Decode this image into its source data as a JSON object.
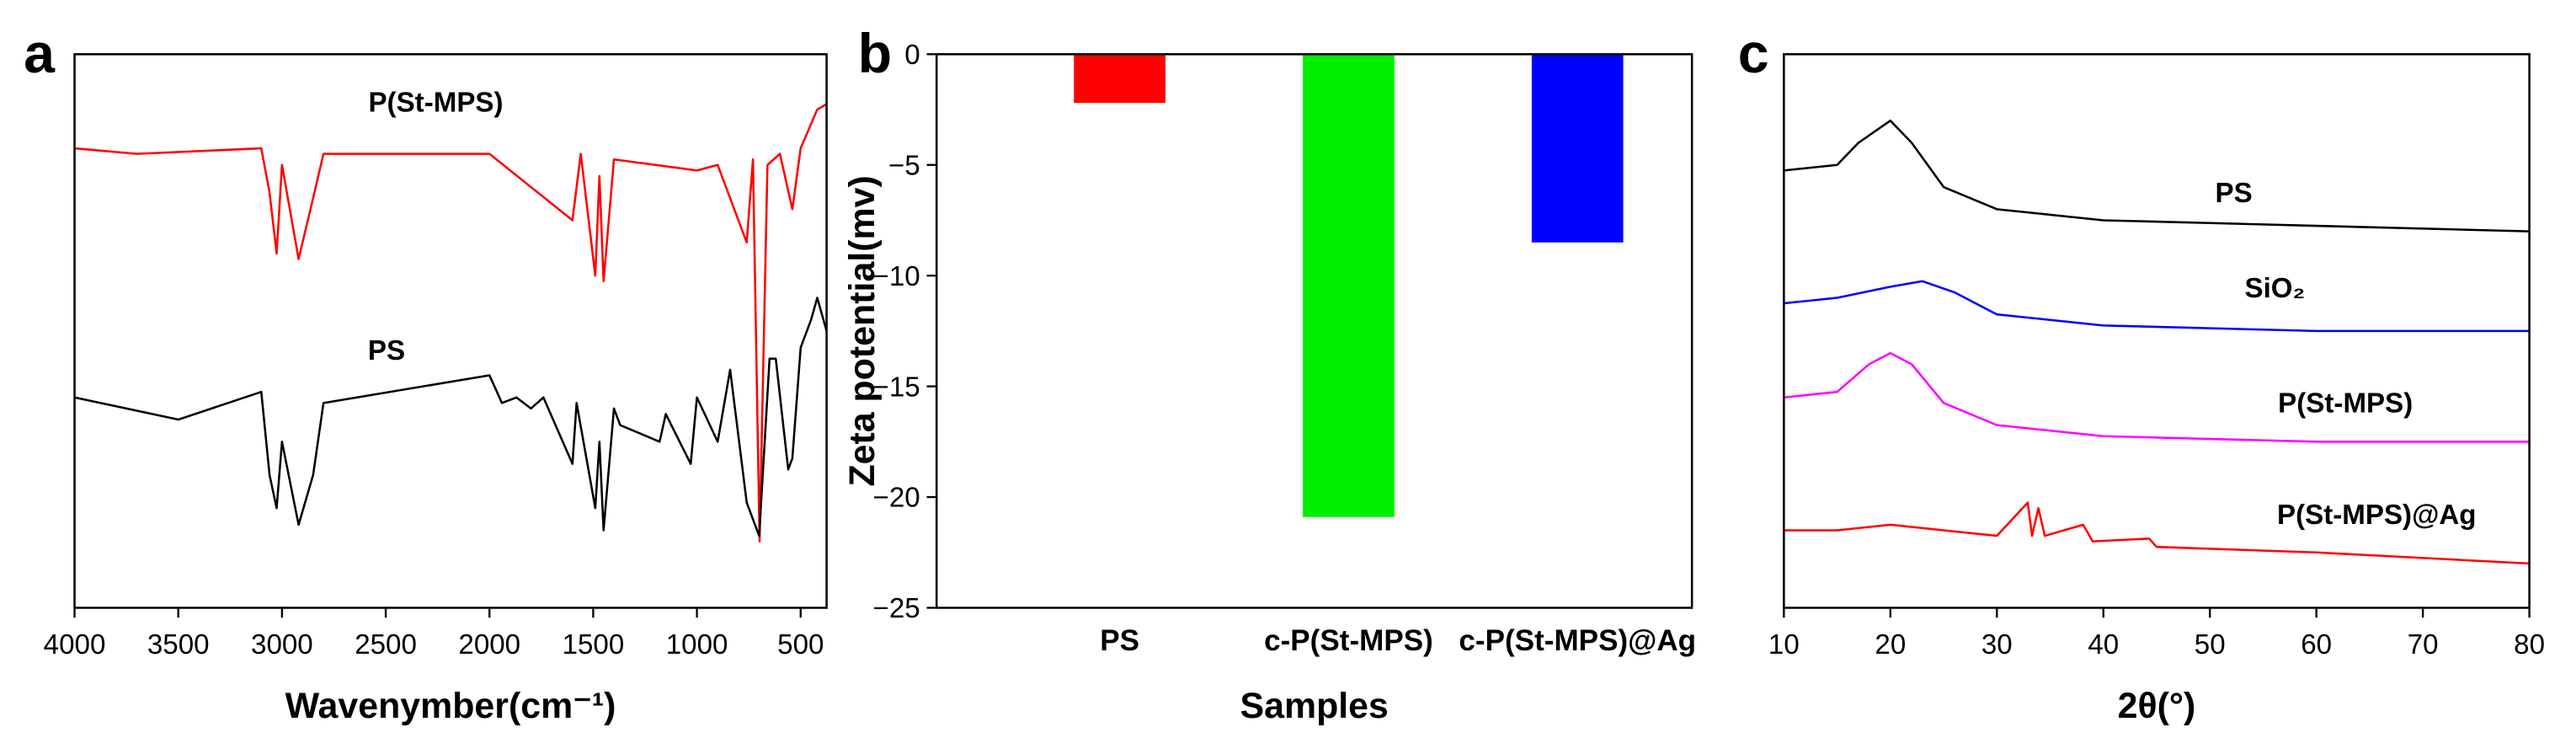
{
  "chart_data": [
    {
      "type": "line",
      "panel_label": "a",
      "xlabel": "Wavenymber(cm⁻¹)",
      "xlim": [
        4000,
        375
      ],
      "xticks": [
        4000,
        3500,
        3000,
        2500,
        2000,
        1500,
        1000,
        500
      ],
      "ylim": [
        0,
        100
      ],
      "series": [
        {
          "name": "P(St-MPS)",
          "color": "#ff0000",
          "x": [
            4000,
            3700,
            3100,
            3060,
            3026,
            3000,
            2920,
            2850,
            2800,
            2000,
            1600,
            1560,
            1490,
            1470,
            1450,
            1400,
            1000,
            900,
            760,
            730,
            698,
            660,
            600,
            540,
            500,
            420,
            375
          ],
          "values": [
            83,
            82,
            83,
            75,
            64,
            80,
            63,
            74,
            82,
            82,
            70,
            82,
            60,
            78,
            59,
            81,
            79,
            80,
            66,
            81,
            12,
            80,
            82,
            72,
            83,
            90,
            91
          ]
        },
        {
          "name": "PS",
          "color": "#000000",
          "x": [
            4000,
            3500,
            3100,
            3060,
            3026,
            3000,
            2920,
            2850,
            2800,
            2000,
            1940,
            1870,
            1800,
            1740,
            1600,
            1580,
            1490,
            1470,
            1450,
            1400,
            1370,
            1180,
            1150,
            1070,
            1030,
            1000,
            900,
            840,
            760,
            700,
            650,
            620,
            560,
            540,
            500,
            450,
            420,
            375
          ],
          "values": [
            38,
            34,
            39,
            24,
            18,
            30,
            15,
            24,
            37,
            42,
            37,
            38,
            36,
            38,
            26,
            37,
            18,
            30,
            14,
            36,
            33,
            30,
            35,
            29,
            26,
            38,
            30,
            43,
            19,
            13,
            45,
            45,
            25,
            27,
            47,
            52,
            56,
            50
          ]
        }
      ]
    },
    {
      "type": "bar",
      "panel_label": "b",
      "xlabel": "Samples",
      "ylabel": "Zeta potential(mv)",
      "categories": [
        "PS",
        "c-P(St-MPS)",
        "c-P(St-MPS)@Ag"
      ],
      "values": [
        -2.2,
        -20.9,
        -8.5
      ],
      "colors": [
        "#ff0000",
        "#00ee00",
        "#0000ff"
      ],
      "ylim": [
        -25,
        0
      ],
      "yticks": [
        0,
        {
          "value": -5,
          "label": "−5"
        },
        {
          "value": -10,
          "label": "−10"
        },
        {
          "value": -15,
          "label": "−15"
        },
        {
          "value": -20,
          "label": "−20"
        },
        {
          "value": -25,
          "label": "−25"
        }
      ]
    },
    {
      "type": "line",
      "panel_label": "c",
      "xlabel": "2θ(°)",
      "xlim": [
        10,
        80
      ],
      "xticks": [
        10,
        20,
        30,
        40,
        50,
        60,
        70,
        80
      ],
      "ylim": [
        0,
        100
      ],
      "series": [
        {
          "name": "PS",
          "color": "#000000",
          "x": [
            10,
            15,
            17,
            20,
            22,
            25,
            30,
            40,
            60,
            80
          ],
          "values": [
            79,
            80,
            84,
            88,
            84,
            76,
            72,
            70,
            69,
            68
          ]
        },
        {
          "name": "SiO₂",
          "color": "#0000ff",
          "x": [
            10,
            15,
            20,
            23,
            26,
            30,
            40,
            60,
            80
          ],
          "values": [
            55,
            56,
            58,
            59,
            57,
            53,
            51,
            50,
            50
          ]
        },
        {
          "name": "P(St-MPS)",
          "color": "#ff00ff",
          "x": [
            10,
            15,
            18,
            20,
            22,
            25,
            30,
            40,
            60,
            80
          ],
          "values": [
            38,
            39,
            44,
            46,
            44,
            37,
            33,
            31,
            30,
            30
          ]
        },
        {
          "name": "P(St-MPS)@Ag",
          "color": "#ff0000",
          "x": [
            10,
            15,
            20,
            25,
            30,
            32.9,
            33.3,
            33.9,
            34.5,
            38.1,
            39,
            44.3,
            45,
            60,
            80
          ],
          "values": [
            14,
            14,
            15,
            14,
            13,
            19,
            13,
            18,
            13,
            15,
            12,
            12.5,
            11,
            10,
            8
          ]
        }
      ]
    }
  ]
}
